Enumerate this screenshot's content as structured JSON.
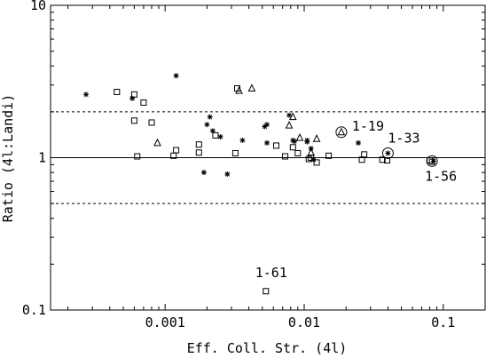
{
  "chart_data": {
    "type": "scatter",
    "xlabel": "Eff. Coll. Str. (4l)",
    "ylabel": "Ratio (4l:Landi)",
    "xscale": "log",
    "yscale": "log",
    "xlim": [
      0.00015,
      0.2
    ],
    "ylim": [
      0.1,
      10
    ],
    "xticks": [
      {
        "value": 0.001,
        "label": "0.001"
      },
      {
        "value": 0.01,
        "label": "0.01"
      },
      {
        "value": 0.1,
        "label": "0.1"
      }
    ],
    "yticks": [
      {
        "value": 0.1,
        "label": "0.1"
      },
      {
        "value": 1,
        "label": "1"
      },
      {
        "value": 10,
        "label": "10"
      }
    ],
    "reference_lines": [
      {
        "y": 1,
        "style": "solid"
      },
      {
        "y": 2,
        "style": "dashed"
      },
      {
        "y": 0.5,
        "style": "dashed"
      }
    ],
    "series": [
      {
        "marker": "square",
        "points": [
          {
            "x": 0.00045,
            "y": 2.7
          },
          {
            "x": 0.0006,
            "y": 2.6
          },
          {
            "x": 0.0006,
            "y": 1.75
          },
          {
            "x": 0.00063,
            "y": 1.02
          },
          {
            "x": 0.0007,
            "y": 2.3
          },
          {
            "x": 0.0008,
            "y": 1.7
          },
          {
            "x": 0.00115,
            "y": 1.03
          },
          {
            "x": 0.0012,
            "y": 1.12
          },
          {
            "x": 0.00175,
            "y": 1.22
          },
          {
            "x": 0.00175,
            "y": 1.08
          },
          {
            "x": 0.0023,
            "y": 1.4
          },
          {
            "x": 0.0032,
            "y": 1.07
          },
          {
            "x": 0.0033,
            "y": 2.85
          },
          {
            "x": 0.0053,
            "y": 0.133
          },
          {
            "x": 0.0063,
            "y": 1.2
          },
          {
            "x": 0.0073,
            "y": 1.02
          },
          {
            "x": 0.0083,
            "y": 1.17
          },
          {
            "x": 0.009,
            "y": 1.07
          },
          {
            "x": 0.0108,
            "y": 0.98
          },
          {
            "x": 0.0112,
            "y": 1.0
          },
          {
            "x": 0.0123,
            "y": 0.93
          },
          {
            "x": 0.015,
            "y": 1.03
          },
          {
            "x": 0.026,
            "y": 0.97
          },
          {
            "x": 0.027,
            "y": 1.05
          },
          {
            "x": 0.0365,
            "y": 0.97
          },
          {
            "x": 0.0395,
            "y": 0.96
          },
          {
            "x": 0.08,
            "y": 0.96
          },
          {
            "x": 0.083,
            "y": 0.94
          }
        ]
      },
      {
        "marker": "star",
        "points": [
          {
            "x": 0.00027,
            "y": 2.6
          },
          {
            "x": 0.00058,
            "y": 2.45
          },
          {
            "x": 0.0012,
            "y": 3.45
          },
          {
            "x": 0.0019,
            "y": 0.8
          },
          {
            "x": 0.002,
            "y": 1.65
          },
          {
            "x": 0.0021,
            "y": 1.85
          },
          {
            "x": 0.0022,
            "y": 1.5
          },
          {
            "x": 0.0025,
            "y": 1.37
          },
          {
            "x": 0.0028,
            "y": 0.78
          },
          {
            "x": 0.0036,
            "y": 1.3
          },
          {
            "x": 0.0052,
            "y": 1.6
          },
          {
            "x": 0.0054,
            "y": 1.65
          },
          {
            "x": 0.0054,
            "y": 1.25
          },
          {
            "x": 0.0078,
            "y": 1.9
          },
          {
            "x": 0.0083,
            "y": 1.3
          },
          {
            "x": 0.0085,
            "y": 1.28
          },
          {
            "x": 0.0105,
            "y": 1.3
          },
          {
            "x": 0.0105,
            "y": 1.27
          },
          {
            "x": 0.0112,
            "y": 1.15
          },
          {
            "x": 0.0117,
            "y": 0.97
          },
          {
            "x": 0.0245,
            "y": 1.25
          },
          {
            "x": 0.04,
            "y": 1.07
          },
          {
            "x": 0.085,
            "y": 0.95
          }
        ]
      },
      {
        "marker": "triangle",
        "points": [
          {
            "x": 0.00088,
            "y": 1.25
          },
          {
            "x": 0.0034,
            "y": 2.75
          },
          {
            "x": 0.0042,
            "y": 2.85
          },
          {
            "x": 0.0078,
            "y": 1.63
          },
          {
            "x": 0.0083,
            "y": 1.85
          },
          {
            "x": 0.0093,
            "y": 1.35
          },
          {
            "x": 0.0112,
            "y": 1.08
          },
          {
            "x": 0.0123,
            "y": 1.33
          },
          {
            "x": 0.0185,
            "y": 1.47
          }
        ]
      }
    ],
    "annotations": [
      {
        "label": "1-19",
        "x": 0.0185,
        "y": 1.47,
        "circled": true
      },
      {
        "label": "1-33",
        "x": 0.04,
        "y": 1.07,
        "circled": true
      },
      {
        "label": "1-56",
        "x": 0.083,
        "y": 0.95,
        "circled": true
      },
      {
        "label": "1-61",
        "x": 0.0053,
        "y": 0.133,
        "circled": false
      }
    ]
  }
}
